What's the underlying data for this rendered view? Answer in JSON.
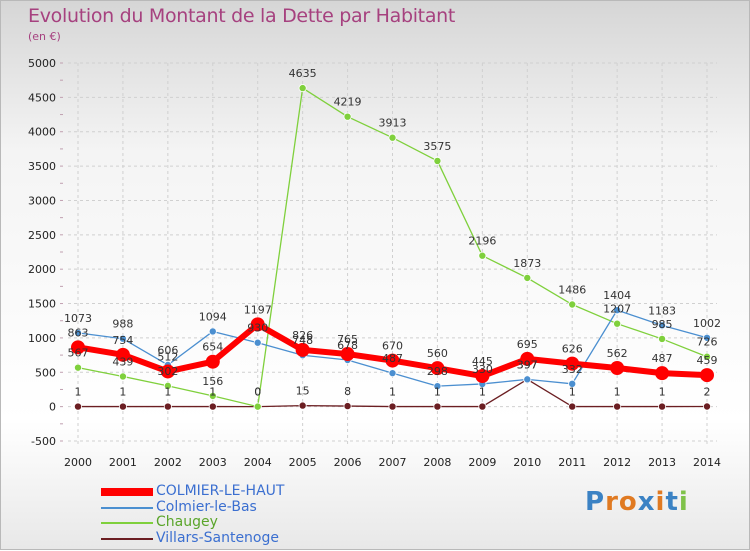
{
  "title": "Evolution du Montant de la Dette par Habitant",
  "subtitle": "(en €)",
  "logo": {
    "text": "Proxiti"
  },
  "chart_data": {
    "type": "line",
    "categories": [
      "2000",
      "2001",
      "2002",
      "2003",
      "2004",
      "2005",
      "2006",
      "2007",
      "2008",
      "2009",
      "2010",
      "2011",
      "2012",
      "2013",
      "2014"
    ],
    "ylim": [
      -500,
      5000
    ],
    "yticks": [
      -500,
      0,
      500,
      1000,
      1500,
      2000,
      2500,
      3000,
      3500,
      4000,
      4500,
      5000
    ],
    "grid": true,
    "legend_position": "bottom-left",
    "series": [
      {
        "name": "Villars-Santenoge",
        "color": "#6b1e22",
        "values": [
          1,
          1,
          1,
          1,
          0,
          15,
          8,
          1,
          1,
          1,
          397,
          1,
          1,
          1,
          2
        ],
        "labels": [
          "1",
          "1",
          "1",
          "1",
          "0",
          "15",
          "8",
          "1",
          "1",
          "1",
          "397",
          "1",
          "1",
          "1",
          "2"
        ]
      },
      {
        "name": "Chaugey",
        "color": "#7fd03c",
        "values": [
          567,
          439,
          302,
          156,
          0,
          4635,
          4219,
          3913,
          3575,
          2196,
          1873,
          1486,
          1207,
          985,
          726
        ],
        "labels": [
          "567",
          "439",
          "302",
          "156",
          "0",
          "4635",
          "4219",
          "3913",
          "3575",
          "2196",
          "1873",
          "1486",
          "1207",
          "985",
          "726"
        ]
      },
      {
        "name": "Colmier-le-Bas",
        "color": "#4b8fd0",
        "values": [
          1073,
          988,
          606,
          1094,
          930,
          748,
          678,
          487,
          298,
          330,
          397,
          332,
          1404,
          1183,
          1002
        ],
        "labels": [
          "1073",
          "988",
          "606",
          "1094",
          "930",
          "748",
          "678",
          "487",
          "298",
          "330",
          "397",
          "332",
          "1404",
          "1183",
          "1002"
        ]
      },
      {
        "name": "COLMIER-LE-HAUT",
        "color": "#ff0000",
        "values": [
          863,
          754,
          512,
          654,
          1197,
          826,
          765,
          670,
          560,
          445,
          695,
          626,
          562,
          487,
          459
        ],
        "labels": [
          "863",
          "754",
          "512",
          "654",
          "1197",
          "826",
          "765",
          "670",
          "560",
          "445",
          "695",
          "626",
          "562",
          "487",
          "459"
        ]
      }
    ],
    "legend_order": [
      "COLMIER-LE-HAUT",
      "Colmier-le-Bas",
      "Chaugey",
      "Villars-Santenoge"
    ]
  }
}
